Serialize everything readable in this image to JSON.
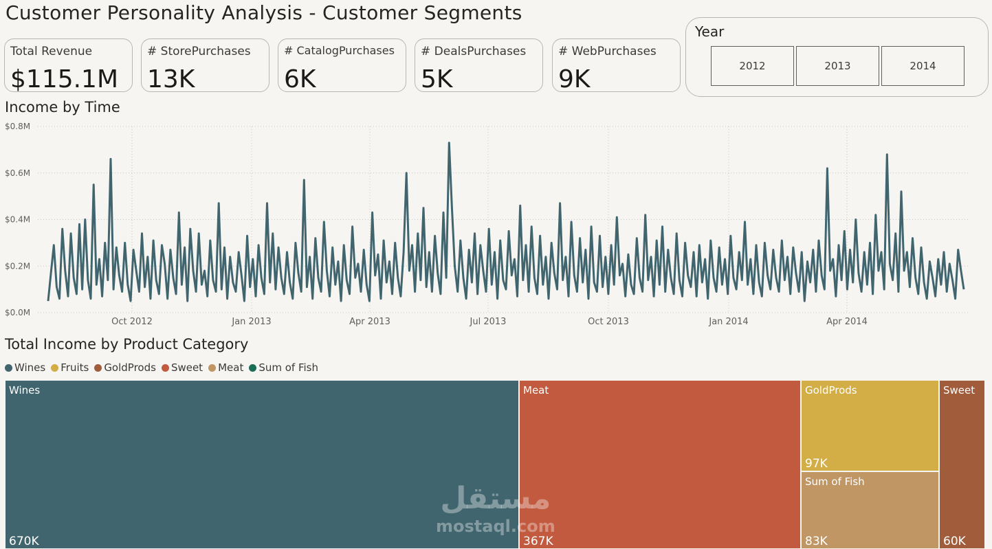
{
  "header": {
    "title": "Customer Personality Analysis - Customer Segments"
  },
  "kpis": [
    {
      "label": "Total Revenue",
      "value": "$115.1M"
    },
    {
      "label": "# StorePurchases",
      "value": "13K"
    },
    {
      "label": "# CatalogPurchases",
      "value": "6K"
    },
    {
      "label": "# DealsPurchases",
      "value": "5K"
    },
    {
      "label": "# WebPurchases",
      "value": "9K"
    }
  ],
  "year_slicer": {
    "label": "Year",
    "options": [
      "2012",
      "2013",
      "2014"
    ]
  },
  "income_chart": {
    "title": "Income by Time",
    "y_ticks": [
      "$0.0M",
      "$0.2M",
      "$0.4M",
      "$0.6M",
      "$0.8M"
    ],
    "x_ticks": [
      "Oct 2012",
      "Jan 2013",
      "Apr 2013",
      "Jul 2013",
      "Oct 2013",
      "Jan 2014",
      "Apr 2014"
    ],
    "line_color": "#41656e"
  },
  "chart_data": [
    {
      "type": "line",
      "title": "Income by Time",
      "xlabel": "",
      "ylabel": "",
      "x_range": [
        "2012-07-30",
        "2014-06-29"
      ],
      "ylim": [
        0,
        0.8
      ],
      "y_unit": "$M",
      "grid": true,
      "series": [
        {
          "values": [
            0.05,
            0.17,
            0.29,
            0.11,
            0.06,
            0.36,
            0.18,
            0.07,
            0.34,
            0.15,
            0.08,
            0.38,
            0.1,
            0.4,
            0.14,
            0.06,
            0.55,
            0.12,
            0.23,
            0.07,
            0.3,
            0.14,
            0.66,
            0.1,
            0.28,
            0.16,
            0.09,
            0.3,
            0.12,
            0.05,
            0.27,
            0.18,
            0.09,
            0.34,
            0.11,
            0.24,
            0.06,
            0.31,
            0.14,
            0.08,
            0.29,
            0.21,
            0.06,
            0.27,
            0.15,
            0.08,
            0.43,
            0.12,
            0.28,
            0.05,
            0.36,
            0.18,
            0.09,
            0.34,
            0.12,
            0.18,
            0.07,
            0.31,
            0.14,
            0.09,
            0.47,
            0.1,
            0.28,
            0.06,
            0.24,
            0.13,
            0.09,
            0.26,
            0.16,
            0.05,
            0.33,
            0.11,
            0.23,
            0.07,
            0.29,
            0.15,
            0.08,
            0.47,
            0.13,
            0.34,
            0.1,
            0.28,
            0.15,
            0.08,
            0.26,
            0.13,
            0.06,
            0.3,
            0.17,
            0.09,
            0.57,
            0.11,
            0.24,
            0.06,
            0.32,
            0.15,
            0.09,
            0.39,
            0.18,
            0.07,
            0.28,
            0.12,
            0.22,
            0.05,
            0.29,
            0.14,
            0.08,
            0.37,
            0.15,
            0.21,
            0.09,
            0.27,
            0.12,
            0.05,
            0.43,
            0.16,
            0.25,
            0.06,
            0.31,
            0.13,
            0.22,
            0.08,
            0.3,
            0.15,
            0.07,
            0.26,
            0.6,
            0.18,
            0.29,
            0.09,
            0.34,
            0.14,
            0.45,
            0.11,
            0.26,
            0.09,
            0.33,
            0.17,
            0.08,
            0.43,
            0.15,
            0.73,
            0.45,
            0.2,
            0.09,
            0.31,
            0.15,
            0.06,
            0.27,
            0.13,
            0.34,
            0.08,
            0.29,
            0.18,
            0.09,
            0.36,
            0.12,
            0.26,
            0.06,
            0.31,
            0.14,
            0.1,
            0.35,
            0.16,
            0.23,
            0.07,
            0.46,
            0.14,
            0.29,
            0.09,
            0.37,
            0.15,
            0.08,
            0.33,
            0.12,
            0.24,
            0.06,
            0.3,
            0.17,
            0.1,
            0.47,
            0.14,
            0.24,
            0.07,
            0.39,
            0.16,
            0.09,
            0.32,
            0.13,
            0.27,
            0.06,
            0.37,
            0.13,
            0.09,
            0.33,
            0.11,
            0.24,
            0.08,
            0.29,
            0.12,
            0.41,
            0.16,
            0.21,
            0.07,
            0.25,
            0.12,
            0.08,
            0.32,
            0.15,
            0.09,
            0.42,
            0.14,
            0.24,
            0.07,
            0.31,
            0.12,
            0.37,
            0.09,
            0.27,
            0.15,
            0.08,
            0.34,
            0.14,
            0.07,
            0.3,
            0.16,
            0.11,
            0.26,
            0.07,
            0.29,
            0.13,
            0.23,
            0.06,
            0.31,
            0.15,
            0.09,
            0.28,
            0.12,
            0.23,
            0.08,
            0.33,
            0.15,
            0.1,
            0.26,
            0.14,
            0.39,
            0.12,
            0.23,
            0.08,
            0.29,
            0.13,
            0.07,
            0.3,
            0.16,
            0.1,
            0.27,
            0.15,
            0.09,
            0.31,
            0.14,
            0.24,
            0.08,
            0.28,
            0.17,
            0.09,
            0.26,
            0.05,
            0.22,
            0.13,
            0.27,
            0.09,
            0.31,
            0.16,
            0.1,
            0.62,
            0.18,
            0.23,
            0.07,
            0.29,
            0.14,
            0.35,
            0.1,
            0.27,
            0.13,
            0.4,
            0.17,
            0.09,
            0.26,
            0.12,
            0.3,
            0.08,
            0.42,
            0.18,
            0.26,
            0.1,
            0.68,
            0.21,
            0.14,
            0.34,
            0.09,
            0.52,
            0.18,
            0.26,
            0.11,
            0.32,
            0.15,
            0.08,
            0.28,
            0.13,
            0.06,
            0.22,
            0.15,
            0.07,
            0.23,
            0.12,
            0.26,
            0.09,
            0.21,
            0.14,
            0.06,
            0.27,
            0.18,
            0.1
          ]
        }
      ],
      "x_ticks": [
        "Oct 2012",
        "Jan 2013",
        "Apr 2013",
        "Jul 2013",
        "Oct 2013",
        "Jan 2014",
        "Apr 2014"
      ],
      "y_ticks": [
        "$0.0M",
        "$0.2M",
        "$0.4M",
        "$0.6M",
        "$0.8M"
      ]
    },
    {
      "type": "treemap",
      "title": "Total Income by Product Category",
      "legend": [
        "Wines",
        "Fruits",
        "GoldProds",
        "Sweet",
        "Meat",
        "Sum of Fish"
      ],
      "legend_placement": "top-left",
      "categories": [
        "Wines",
        "Meat",
        "GoldProds",
        "Sum of Fish",
        "Sweet"
      ],
      "values": [
        670,
        367,
        97,
        83,
        60
      ],
      "value_unit": "K"
    }
  ],
  "legend_colors": {
    "Wines": "#41656e",
    "Fruits": "#d3ad45",
    "GoldProds": "#a15d3b",
    "Sweet": "#c25a3f",
    "Meat": "#c09665",
    "Sum of Fish": "#1b6e55"
  },
  "treemap_tiles": [
    {
      "name": "Wines",
      "value": "670K",
      "color": "#41656e"
    },
    {
      "name": "Meat",
      "value": "367K",
      "color": "#c25a3f"
    },
    {
      "name": "GoldProds",
      "value": "97K",
      "color": "#d3ad45"
    },
    {
      "name": "Sum of Fish",
      "value": "83K",
      "color": "#c09665"
    },
    {
      "name": "Sweet",
      "value": "60K",
      "color": "#a15d3b"
    }
  ],
  "product_title": "Total Income by Product Category",
  "watermark": {
    "arabic": "مستقل",
    "latin": "mostaql.com"
  }
}
